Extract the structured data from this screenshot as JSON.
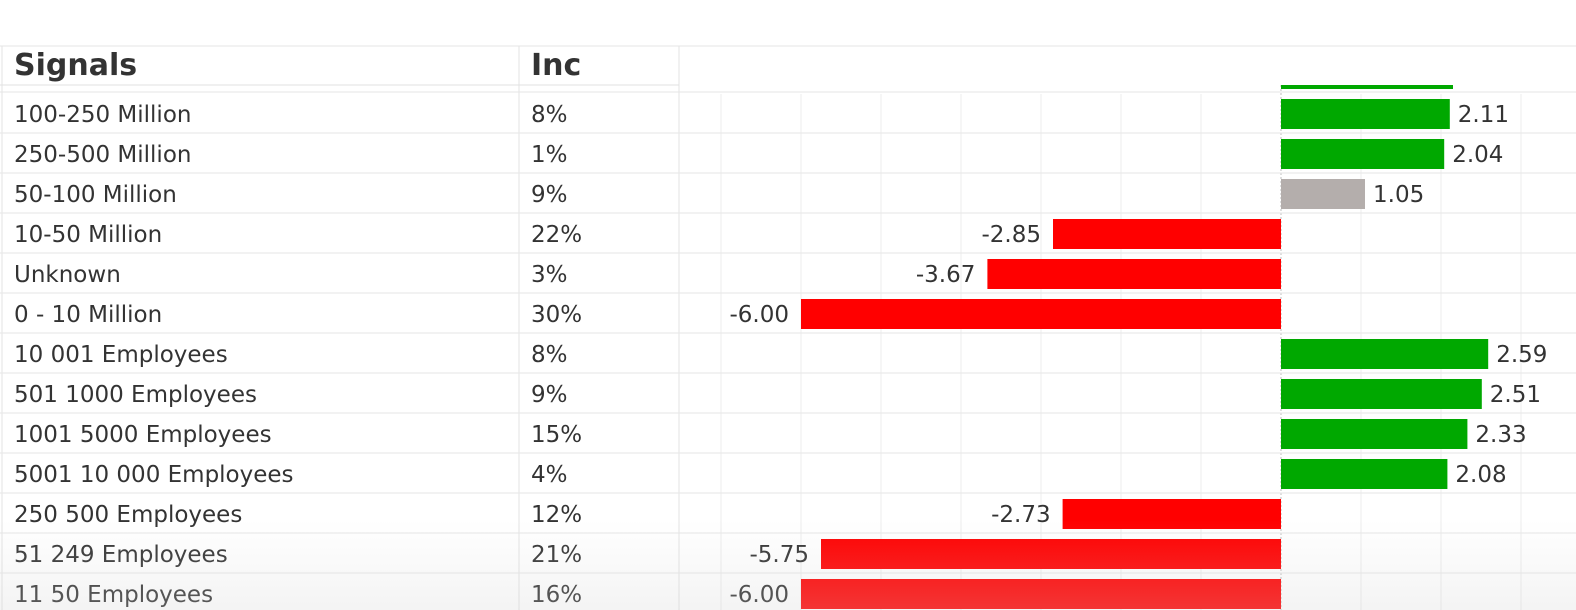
{
  "headers": {
    "signals": "Signals",
    "inc": "Inc"
  },
  "colors": {
    "positive": "#00a800",
    "neutral": "#b4aeac",
    "negative": "#ff0000"
  },
  "chart_data": {
    "type": "bar",
    "orientation": "horizontal",
    "categories": [
      "100-250 Million",
      "250-500 Million",
      "50-100 Million",
      "10-50 Million",
      "Unknown",
      "0 - 10 Million",
      "10 001 Employees",
      "501 1000 Employees",
      "1001 5000 Employees",
      "5001 10 000 Employees",
      "250 500 Employees",
      "51 249 Employees",
      "11 50 Employees"
    ],
    "inc": [
      "8%",
      "1%",
      "9%",
      "22%",
      "3%",
      "30%",
      "8%",
      "9%",
      "15%",
      "4%",
      "12%",
      "21%",
      "16%"
    ],
    "values": [
      2.11,
      2.04,
      1.05,
      -2.85,
      -3.67,
      -6.0,
      2.59,
      2.51,
      2.33,
      2.08,
      -2.73,
      -5.75,
      -6.0
    ],
    "labels": [
      "2.11",
      "2.04",
      "1.05",
      "-2.85",
      "-3.67",
      "-6.00",
      "2.59",
      "2.51",
      "2.33",
      "2.08",
      "-2.73",
      "-5.75",
      "-6.00"
    ],
    "bar_color": [
      "positive",
      "positive",
      "neutral",
      "negative",
      "negative",
      "negative",
      "positive",
      "positive",
      "positive",
      "positive",
      "negative",
      "negative",
      "negative"
    ],
    "partial_top_bar": {
      "value": 2.15,
      "color": "positive"
    },
    "xlim": [
      -7.0,
      3.5
    ],
    "grid_step": 1.0,
    "grid": true
  }
}
